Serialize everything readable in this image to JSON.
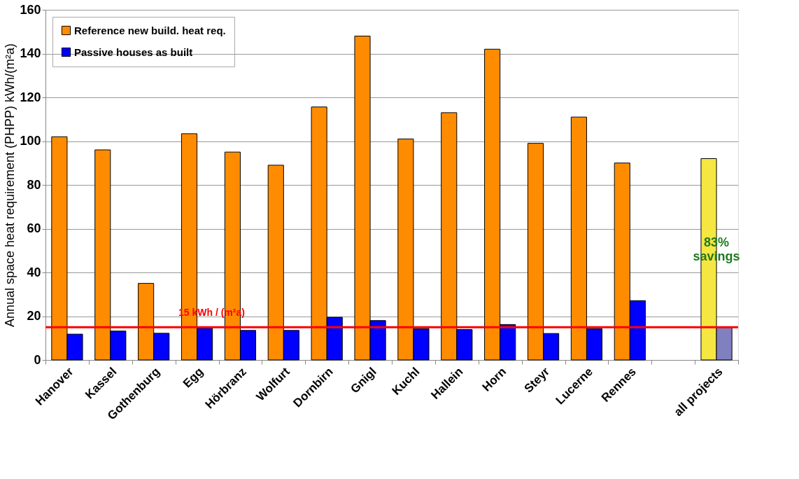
{
  "chart_data": {
    "type": "bar",
    "ylabel": "Annual space heat requirement (PHPP) kWh/(m²a)",
    "categories": [
      "Hanover",
      "Kassel",
      "Gothenburg",
      "Egg",
      "Hörbranz",
      "Wolfurt",
      "Dornbirn",
      "Gnigl",
      "Kuchl",
      "Hallein",
      "Horn",
      "Steyr",
      "Lucerne",
      "Rennes",
      null,
      "all projects"
    ],
    "series": [
      {
        "name": "Reference new build. heat req.",
        "color": "#ff8c00",
        "colors": [
          "#ff8c00",
          "#ff8c00",
          "#ff8c00",
          "#ff8c00",
          "#ff8c00",
          "#ff8c00",
          "#ff8c00",
          "#ff8c00",
          "#ff8c00",
          "#ff8c00",
          "#ff8c00",
          "#ff8c00",
          "#ff8c00",
          "#ff8c00",
          "#ff8c00",
          "#f5e642"
        ],
        "values": [
          102,
          96,
          35,
          103.4,
          95,
          89,
          115.6,
          148,
          101,
          113,
          142,
          99,
          111,
          90,
          null,
          92
        ]
      },
      {
        "name": "Passive houses as built",
        "color": "#0000ff",
        "colors": [
          "#0000ff",
          "#0000ff",
          "#0000ff",
          "#0000ff",
          "#0000ff",
          "#0000ff",
          "#0000ff",
          "#0000ff",
          "#0000ff",
          "#0000ff",
          "#0000ff",
          "#0000ff",
          "#0000ff",
          "#0000ff",
          "#0000ff",
          "#8080c0"
        ],
        "values": [
          11.8,
          13.2,
          12.2,
          14.5,
          13.5,
          13.5,
          19.5,
          18,
          14.3,
          13.9,
          16.2,
          12.1,
          14.3,
          27.1,
          null,
          15
        ]
      }
    ],
    "ylim": [
      0,
      160
    ],
    "yticks": [
      0,
      20,
      40,
      60,
      80,
      100,
      120,
      140,
      160
    ],
    "grid": "y",
    "legend": "top left",
    "ref_lines": [
      {
        "axis": "y",
        "value": 15,
        "label": "15 kWh / (m²a)",
        "color": "#ff0000"
      }
    ],
    "annotations": [
      "83% savings"
    ]
  }
}
